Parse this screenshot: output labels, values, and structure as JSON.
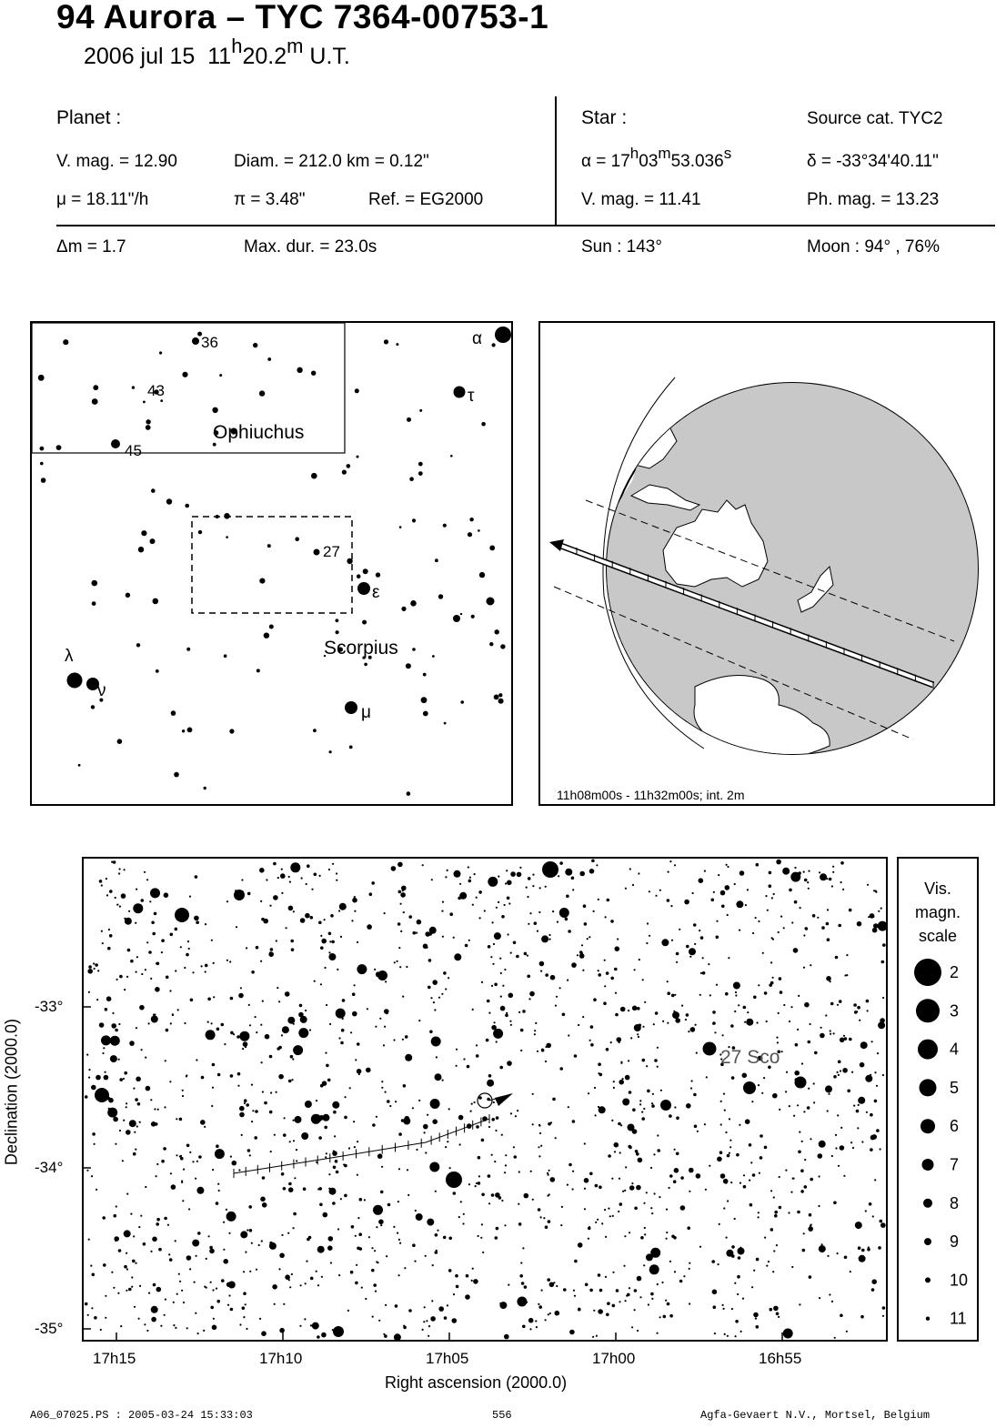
{
  "header": {
    "title": "94 Aurora  –  TYC 7364-00753-1",
    "date": "2006 jul 15",
    "time_h": "11",
    "time_h_sup": "h",
    "time_m": "20.2",
    "time_m_sup": "m",
    "time_suffix": "U.T."
  },
  "planet": {
    "heading": "Planet :",
    "vmag": "V. mag. = 12.90",
    "diam": "Diam. = 212.0 km = 0.12\"",
    "mu": "μ =  18.11\"/h",
    "pi": "π =  3.48\"",
    "ref": "Ref. = EG2000",
    "dm": "Δm = 1.7",
    "maxdur": "Max. dur. = 23.0s"
  },
  "star": {
    "heading": "Star :",
    "source": "Source cat.  TYC2",
    "ra_prefix": "α = 17",
    "ra_h": "h",
    "ra_mid": "03",
    "ra_m": "m",
    "ra_sec": "53.036",
    "ra_s": "s",
    "dec": "δ = -33°34'40.11\"",
    "vmag": "V. mag. = 11.41",
    "phmag": "Ph. mag. = 13.23",
    "sun": "Sun : 143°",
    "moon": "Moon :  94° , 76%"
  },
  "finder_chart": {
    "constellation_1": "Ophiuchus",
    "constellation_2": "Scorpius",
    "labels": [
      "36",
      "43",
      "45",
      "27",
      "α",
      "τ",
      "ε",
      "λ",
      "ν",
      "μ"
    ]
  },
  "globe": {
    "caption": "11h08m00s - 11h32m00s; int.  2m"
  },
  "star_chart": {
    "star_label": "27 Sco",
    "xlabel": "Right ascension (2000.0)",
    "ylabel": "Declination (2000.0)",
    "ra_ticks": [
      "17h15",
      "17h10",
      "17h05",
      "17h00",
      "16h55"
    ],
    "dec_ticks": [
      "-33°",
      "-34°",
      "-35°"
    ]
  },
  "legend": {
    "title_1": "Vis.",
    "title_2": "magn.",
    "title_3": "scale",
    "mags": [
      "2",
      "3",
      "4",
      "5",
      "6",
      "7",
      "8",
      "9",
      "10",
      "11"
    ]
  },
  "footer": {
    "left": "A06_07025.PS : 2005-03-24 15:33:03",
    "center": "556",
    "right": "Agfa-Gevaert N.V., Mortsel, Belgium"
  }
}
